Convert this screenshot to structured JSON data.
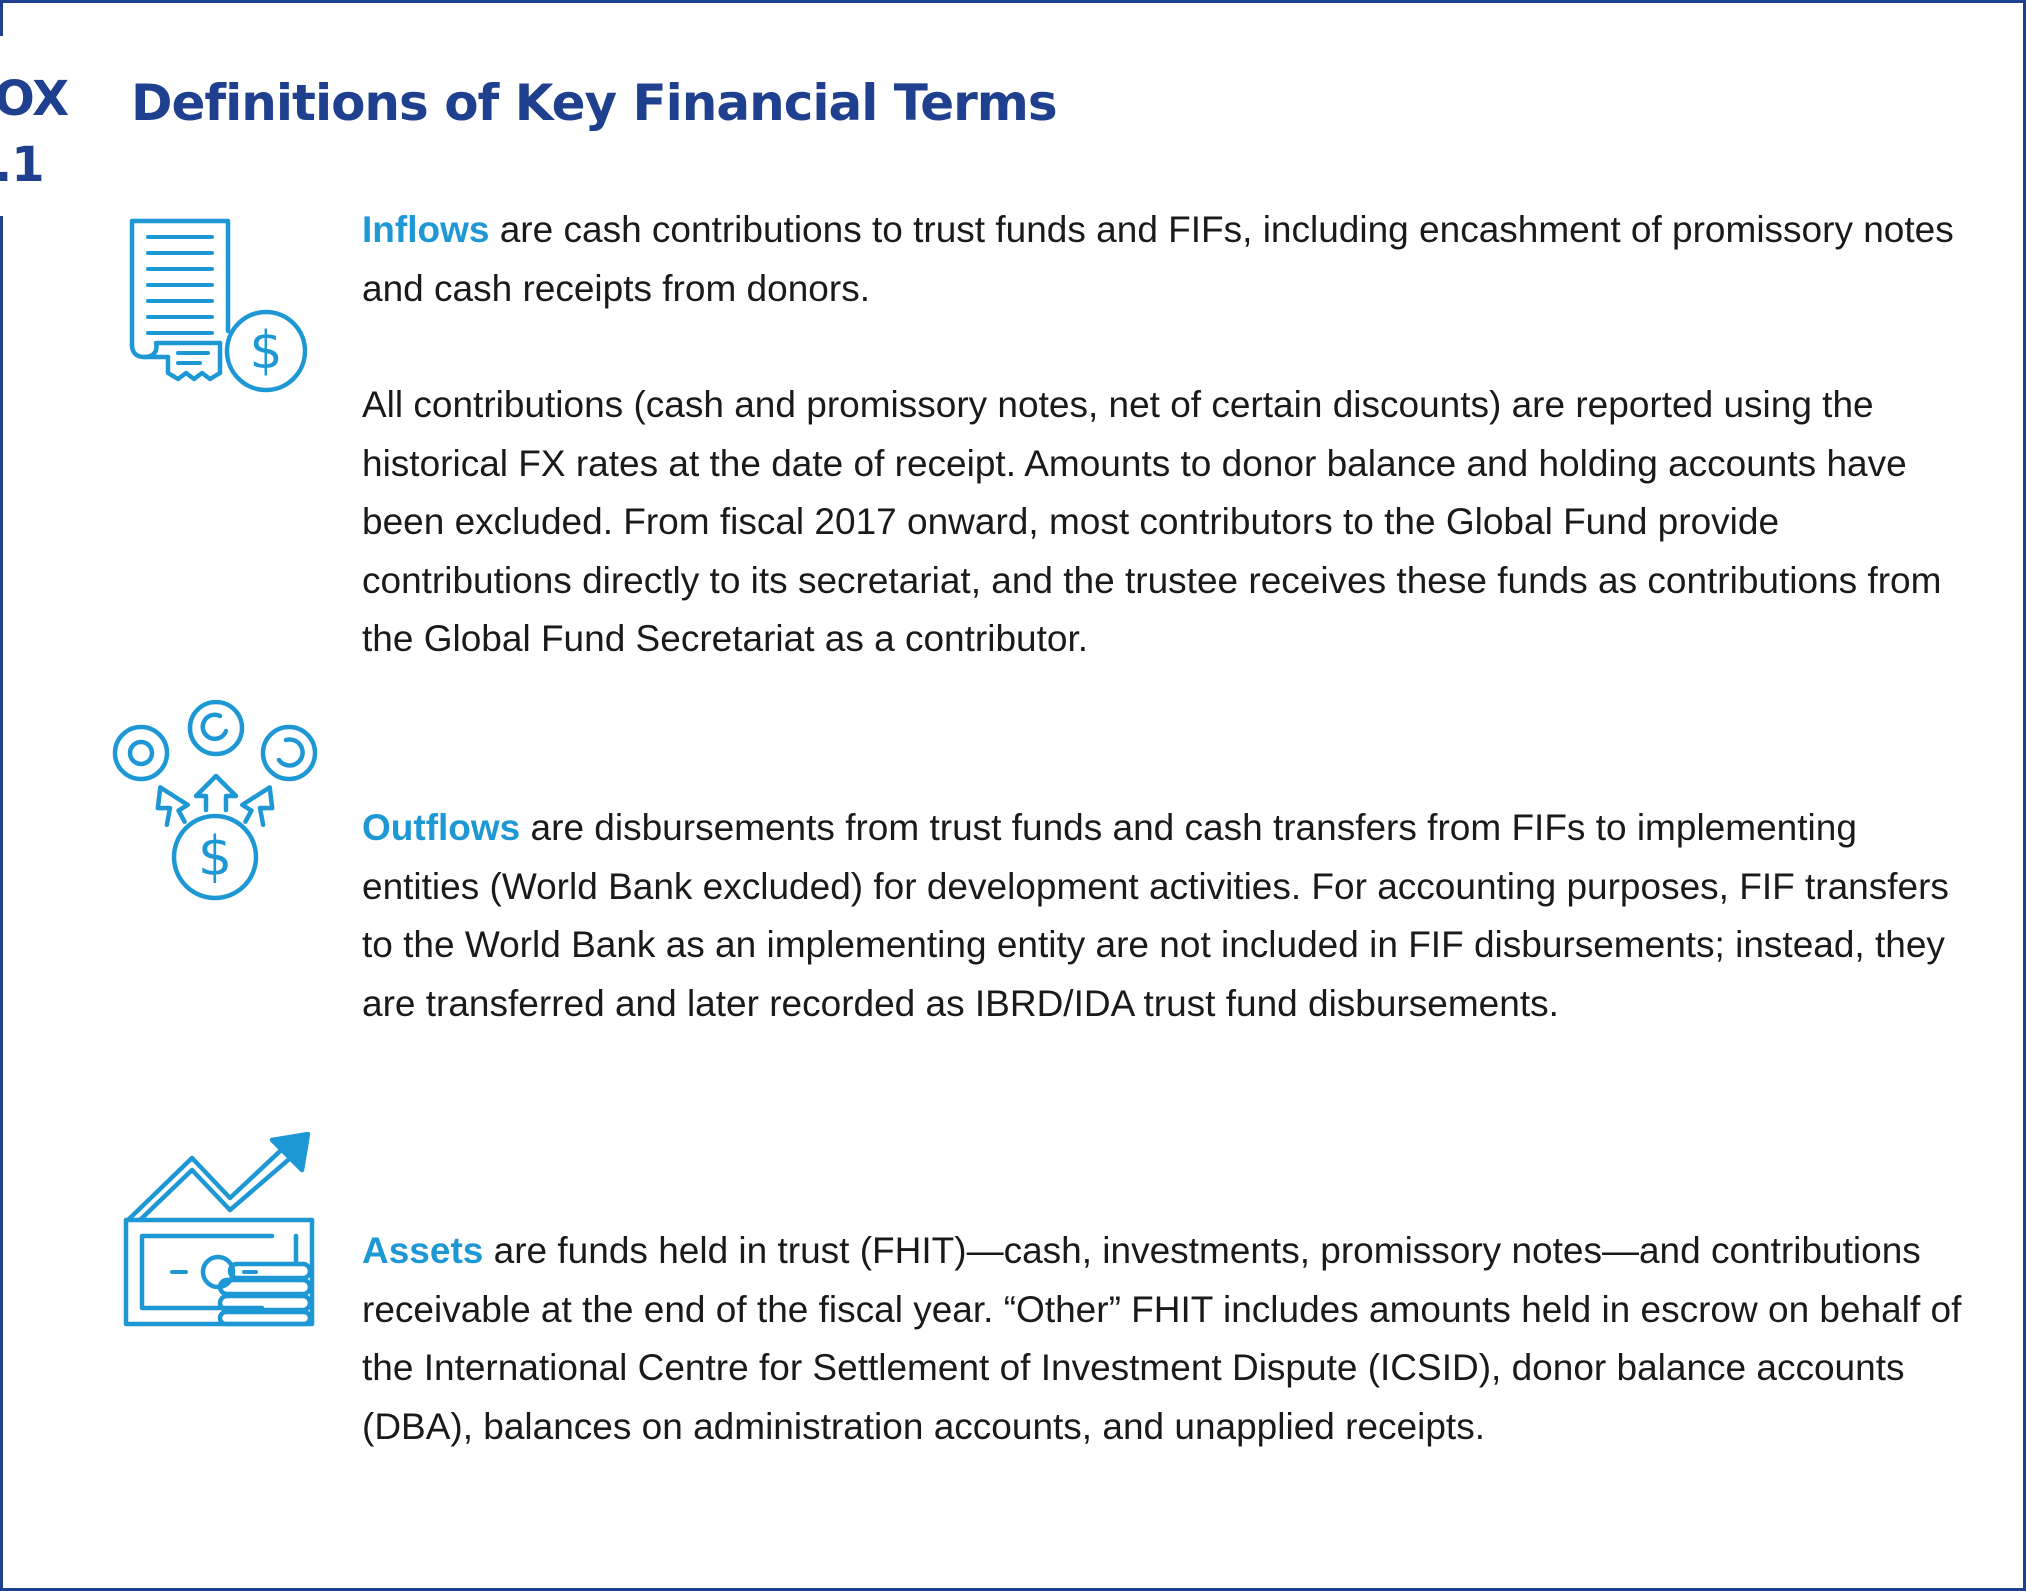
{
  "box_label": {
    "line1": "OX",
    "line2": ".1"
  },
  "title": "Definitions of Key Financial Terms",
  "colors": {
    "heading": "#1f3f8f",
    "accent": "#1e98d4",
    "icon": "#1e98d4",
    "text": "#1a1a1a"
  },
  "sections": {
    "inflows": {
      "icon": "receipt-dollar-icon",
      "term": "Inflows",
      "text": " are cash contributions to trust funds and FIFs, including encashment of promissory notes and cash receipts from donors.",
      "note": "All contributions (cash and promissory notes, net of certain discounts) are reported using the historical FX rates at the date of receipt. Amounts to donor balance and holding accounts have been excluded. From fiscal 2017 onward, most contributors to the Global Fund provide contributions directly to its secretariat, and the trustee receives these funds as contributions from the Global Fund Secretariat as a contributor."
    },
    "outflows": {
      "icon": "dollar-distribution-icon",
      "term": "Outflows",
      "text": " are disbursements from trust funds and cash transfers from FIFs to implementing entities (World Bank excluded) for development activities. For accounting purposes, FIF transfers to the World Bank as an implementing entity are not included in FIF disbursements; instead, they are transferred and later recorded as IBRD/IDA trust fund disbursements."
    },
    "assets": {
      "icon": "money-growth-icon",
      "term": "Assets",
      "text": " are funds held in trust (FHIT)—cash, investments, promissory notes—and contributions receivable at the end of the fiscal year. “Other” FHIT includes amounts held in escrow on behalf of the International Centre for Settlement of Investment Dispute (ICSID), donor balance accounts (DBA), balances on administration accounts, and unapplied receipts."
    }
  }
}
